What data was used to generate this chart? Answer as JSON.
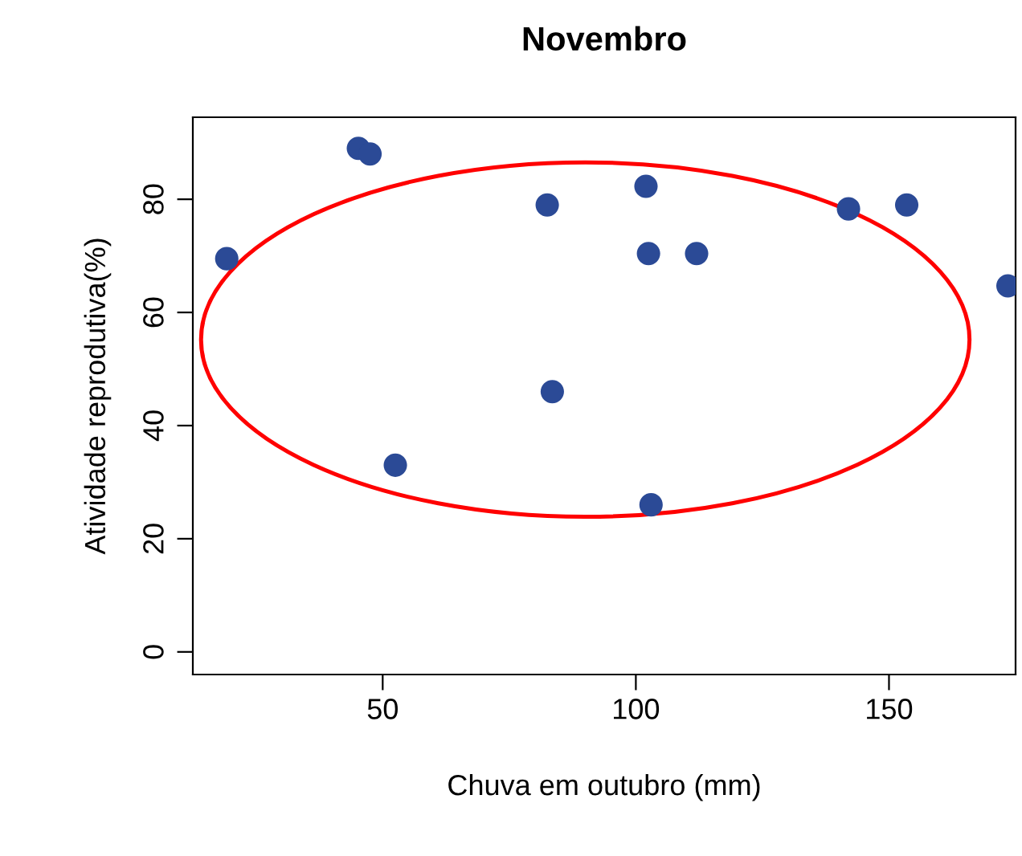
{
  "chart_data": {
    "type": "scatter",
    "title": "Novembro",
    "xlabel": "Chuva em outubro (mm)",
    "ylabel": "Atividade reprodutiva(%)",
    "xlim": [
      12.5,
      175
    ],
    "ylim": [
      -4,
      94.5
    ],
    "xticks": [
      50,
      100,
      150
    ],
    "yticks": [
      0,
      20,
      40,
      60,
      80
    ],
    "grid": false,
    "marker": "circle",
    "series": [
      {
        "color": "#2b4a96",
        "x": [
          19.2,
          45.2,
          47.5,
          52.5,
          82.5,
          83.5,
          102,
          102.5,
          103,
          112,
          142,
          153.5,
          173.5
        ],
        "values": [
          69.5,
          89,
          88,
          33,
          79,
          46,
          82.3,
          70.4,
          26,
          70.4,
          78.3,
          79,
          64.7
        ]
      }
    ]
  }
}
